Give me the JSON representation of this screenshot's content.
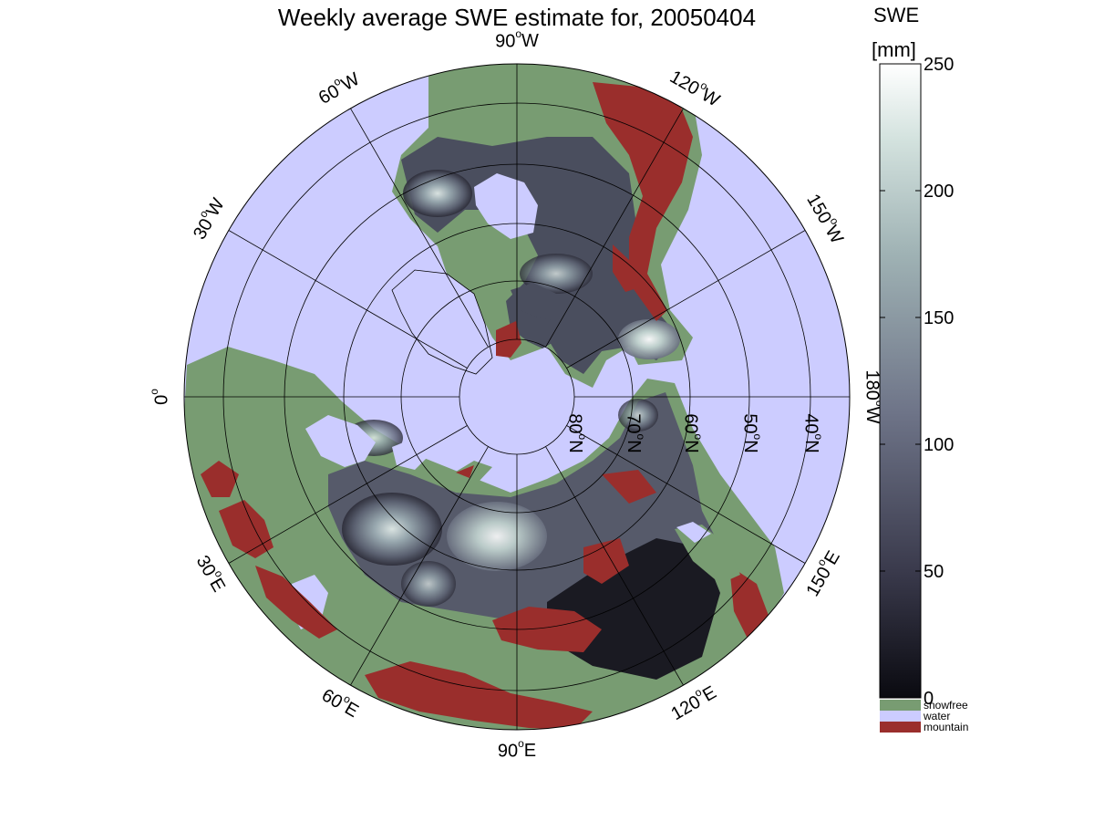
{
  "title": "Weekly average SWE estimate for, 20050404",
  "colors": {
    "water": "#ccccff",
    "snowfree": "#789c72",
    "mountain": "#9a2e2c",
    "grid": "#000000",
    "swe_low": "#0a0a10",
    "swe_high": "#ffffff"
  },
  "longitude_labels": [
    {
      "deg": "90",
      "suffix": "W"
    },
    {
      "deg": "120",
      "suffix": "W"
    },
    {
      "deg": "150",
      "suffix": "W"
    },
    {
      "deg": "180",
      "suffix": "W"
    },
    {
      "deg": "150",
      "suffix": "E"
    },
    {
      "deg": "120",
      "suffix": "E"
    },
    {
      "deg": "90",
      "suffix": "E"
    },
    {
      "deg": "60",
      "suffix": "E"
    },
    {
      "deg": "30",
      "suffix": "E"
    },
    {
      "deg": "0",
      "suffix": ""
    },
    {
      "deg": "30",
      "suffix": "W"
    },
    {
      "deg": "60",
      "suffix": "W"
    }
  ],
  "latitude_labels": [
    {
      "deg": "80",
      "suffix": "N"
    },
    {
      "deg": "70",
      "suffix": "N"
    },
    {
      "deg": "60",
      "suffix": "N"
    },
    {
      "deg": "50",
      "suffix": "N"
    },
    {
      "deg": "40",
      "suffix": "N"
    }
  ],
  "colorbar": {
    "title_line1": "SWE",
    "title_line2": "[mm]",
    "ticks": [
      "0",
      "50",
      "100",
      "150",
      "200",
      "250"
    ],
    "range": [
      0,
      250
    ]
  },
  "legend": [
    {
      "label": "snowfree",
      "color": "#789c72"
    },
    {
      "label": "water",
      "color": "#ccccff"
    },
    {
      "label": "mountain",
      "color": "#9a2e2c"
    }
  ],
  "map": {
    "projection": "north polar stereographic",
    "lat_circles": [
      80,
      70,
      60,
      50,
      40
    ],
    "outer_lat": 30,
    "meridian_step": 30
  }
}
